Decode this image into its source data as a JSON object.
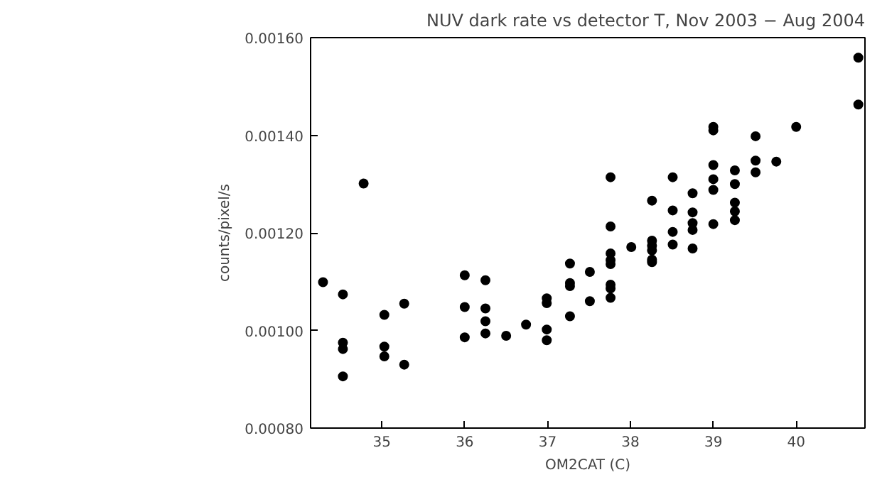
{
  "chart_data": {
    "type": "scatter",
    "title": "NUV dark rate vs detector T, Nov 2003 − Aug 2004",
    "xlabel": "OM2CAT (C)",
    "ylabel": "counts/pixel/s",
    "xlim": [
      34.14,
      40.83
    ],
    "ylim": [
      0.0008,
      0.0016
    ],
    "xticks": [
      35,
      36,
      37,
      38,
      39,
      40
    ],
    "yticks": [
      {
        "value": 0.0008,
        "label": "0.00080"
      },
      {
        "value": 0.001,
        "label": "0.00100"
      },
      {
        "value": 0.0012,
        "label": "0.00120"
      },
      {
        "value": 0.0014,
        "label": "0.00140"
      },
      {
        "value": 0.0016,
        "label": "0.00160"
      }
    ],
    "grid": false,
    "marker": "circle",
    "series": [
      {
        "color": "#000000",
        "x": [
          34.29,
          34.53,
          34.53,
          34.53,
          34.53,
          34.78,
          35.03,
          35.03,
          35.03,
          35.27,
          35.27,
          36.0,
          36.0,
          36.0,
          36.25,
          36.25,
          36.25,
          36.25,
          36.5,
          36.74,
          36.99,
          36.99,
          36.99,
          36.99,
          37.27,
          37.27,
          37.27,
          37.27,
          37.51,
          37.51,
          37.76,
          37.76,
          37.76,
          37.76,
          37.76,
          37.76,
          37.76,
          37.76,
          38.01,
          38.26,
          38.26,
          38.26,
          38.26,
          38.26,
          38.26,
          38.51,
          38.51,
          38.51,
          38.51,
          38.75,
          38.75,
          38.75,
          38.75,
          38.75,
          39.0,
          39.0,
          39.0,
          39.0,
          39.0,
          39.0,
          39.26,
          39.26,
          39.26,
          39.26,
          39.26,
          39.51,
          39.51,
          39.51,
          39.76,
          40.0,
          40.75,
          40.75
        ],
        "values": [
          0.001099,
          0.001074,
          0.000975,
          0.000962,
          0.000906,
          0.001301,
          0.001032,
          0.000967,
          0.000947,
          0.001055,
          0.00093,
          0.001113,
          0.001048,
          0.000986,
          0.001103,
          0.001045,
          0.001019,
          0.000994,
          0.000989,
          0.001012,
          0.001066,
          0.001056,
          0.001002,
          0.00098,
          0.001137,
          0.001097,
          0.001091,
          0.001029,
          0.00112,
          0.00106,
          0.001314,
          0.001213,
          0.001158,
          0.001144,
          0.001136,
          0.001094,
          0.001086,
          0.001067,
          0.001171,
          0.001266,
          0.001184,
          0.001174,
          0.001164,
          0.001145,
          0.00114,
          0.001314,
          0.001246,
          0.001202,
          0.001176,
          0.001281,
          0.001242,
          0.00122,
          0.001206,
          0.001168,
          0.001417,
          0.00141,
          0.001339,
          0.00131,
          0.001288,
          0.001218,
          0.001328,
          0.0013,
          0.001262,
          0.001244,
          0.001226,
          0.001398,
          0.001348,
          0.001324,
          0.001346,
          0.001417,
          0.001559,
          0.001463
        ]
      }
    ]
  }
}
